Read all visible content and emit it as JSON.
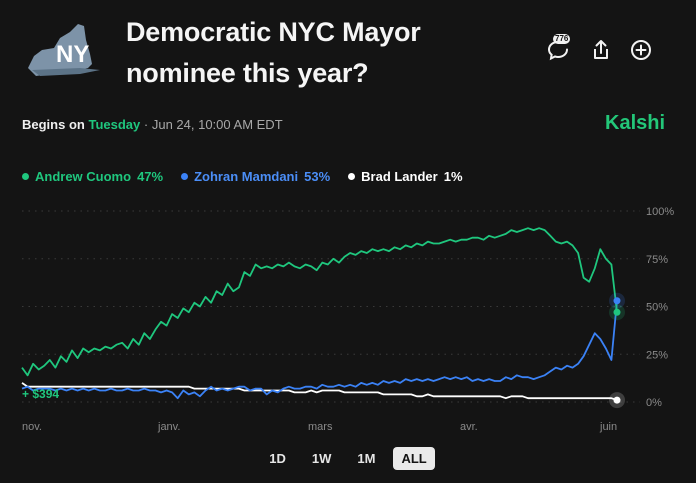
{
  "header": {
    "logo_text": "NY",
    "title_line1": "Democratic NYC Mayor",
    "title_line2": "nominee this year?",
    "comment_count": "776"
  },
  "begins": {
    "label": "Begins on",
    "day": "Tuesday",
    "separator": "·",
    "datetime": "Jun 24, 10:00 AM EDT"
  },
  "brand": "Kalshi",
  "colors": {
    "cuomo": "#1fc77e",
    "mamdani": "#3b82f6",
    "lander": "#ffffff",
    "background": "#141414"
  },
  "legend": [
    {
      "name": "Andrew Cuomo",
      "value": "47%",
      "color": "#1fc77e"
    },
    {
      "name": "Zohran Mamdani",
      "value": "53%",
      "color": "#3b82f6"
    },
    {
      "name": "Brad Lander",
      "value": "1%",
      "color": "#ffffff"
    }
  ],
  "chart_data": {
    "type": "line",
    "x_ticks": [
      "nov.",
      "janv.",
      "mars",
      "avr.",
      "juin"
    ],
    "y_ticks": [
      "100%",
      "75%",
      "50%",
      "25%",
      "0%"
    ],
    "ylim": [
      0,
      100
    ],
    "annotation": "+ $394",
    "series": [
      {
        "name": "Andrew Cuomo",
        "color": "#1fc77e",
        "values": [
          18,
          14,
          20,
          17,
          19,
          22,
          18,
          24,
          21,
          27,
          23,
          28,
          26,
          28,
          27,
          29,
          28,
          30,
          31,
          28,
          33,
          30,
          36,
          33,
          38,
          42,
          40,
          46,
          44,
          49,
          47,
          52,
          50,
          55,
          52,
          58,
          56,
          62,
          58,
          60,
          68,
          66,
          72,
          70,
          71,
          70,
          72,
          71,
          73,
          71,
          70,
          72,
          71,
          69,
          73,
          72,
          75,
          73,
          76,
          78,
          77,
          79,
          78,
          80,
          79,
          80,
          79,
          81,
          80,
          82,
          81,
          83,
          82,
          84,
          83,
          83,
          84,
          85,
          84,
          85,
          85,
          86,
          86,
          85,
          87,
          86,
          87,
          88,
          90,
          89,
          90,
          91,
          90,
          91,
          90,
          87,
          84,
          83,
          84,
          82,
          78,
          65,
          63,
          70,
          80,
          75,
          72,
          47
        ]
      },
      {
        "name": "Zohran Mamdani",
        "color": "#3b82f6",
        "values": [
          7,
          8,
          6,
          7,
          7,
          7,
          6,
          7,
          6,
          7,
          6,
          7,
          6,
          7,
          6,
          6,
          7,
          6,
          6,
          7,
          6,
          6,
          7,
          6,
          6,
          5,
          6,
          5,
          2,
          6,
          4,
          5,
          3,
          6,
          8,
          6,
          7,
          6,
          7,
          8,
          8,
          6,
          7,
          7,
          4,
          6,
          5,
          7,
          8,
          7,
          7,
          8,
          8,
          7,
          9,
          8,
          8,
          9,
          8,
          9,
          8,
          10,
          9,
          10,
          9,
          11,
          10,
          11,
          10,
          12,
          11,
          12,
          11,
          12,
          11,
          12,
          13,
          12,
          13,
          12,
          13,
          11,
          12,
          11,
          12,
          11,
          11,
          13,
          12,
          14,
          13,
          13,
          12,
          13,
          14,
          16,
          18,
          17,
          19,
          18,
          20,
          24,
          30,
          36,
          33,
          28,
          22,
          53
        ]
      },
      {
        "name": "Brad Lander",
        "color": "#ffffff",
        "values": [
          10,
          8,
          8,
          8,
          8,
          8,
          8,
          8,
          8,
          8,
          8,
          8,
          8,
          8,
          8,
          8,
          8,
          8,
          8,
          8,
          8,
          8,
          8,
          8,
          8,
          8,
          8,
          8,
          8,
          8,
          8,
          7,
          7,
          7,
          7,
          7,
          7,
          7,
          7,
          7,
          6,
          6,
          6,
          6,
          6,
          6,
          6,
          6,
          6,
          5,
          5,
          5,
          6,
          5,
          6,
          6,
          6,
          6,
          5,
          5,
          5,
          5,
          5,
          5,
          5,
          4,
          4,
          4,
          4,
          4,
          4,
          3,
          3,
          4,
          3,
          3,
          3,
          3,
          3,
          3,
          3,
          3,
          3,
          3,
          3,
          3,
          3,
          2,
          3,
          3,
          3,
          2,
          2,
          2,
          2,
          2,
          2,
          2,
          2,
          2,
          2,
          2,
          2,
          2,
          2,
          2,
          2,
          1
        ]
      }
    ]
  },
  "range_buttons": [
    {
      "label": "1D",
      "active": false
    },
    {
      "label": "1W",
      "active": false
    },
    {
      "label": "1M",
      "active": false
    },
    {
      "label": "ALL",
      "active": true
    }
  ]
}
